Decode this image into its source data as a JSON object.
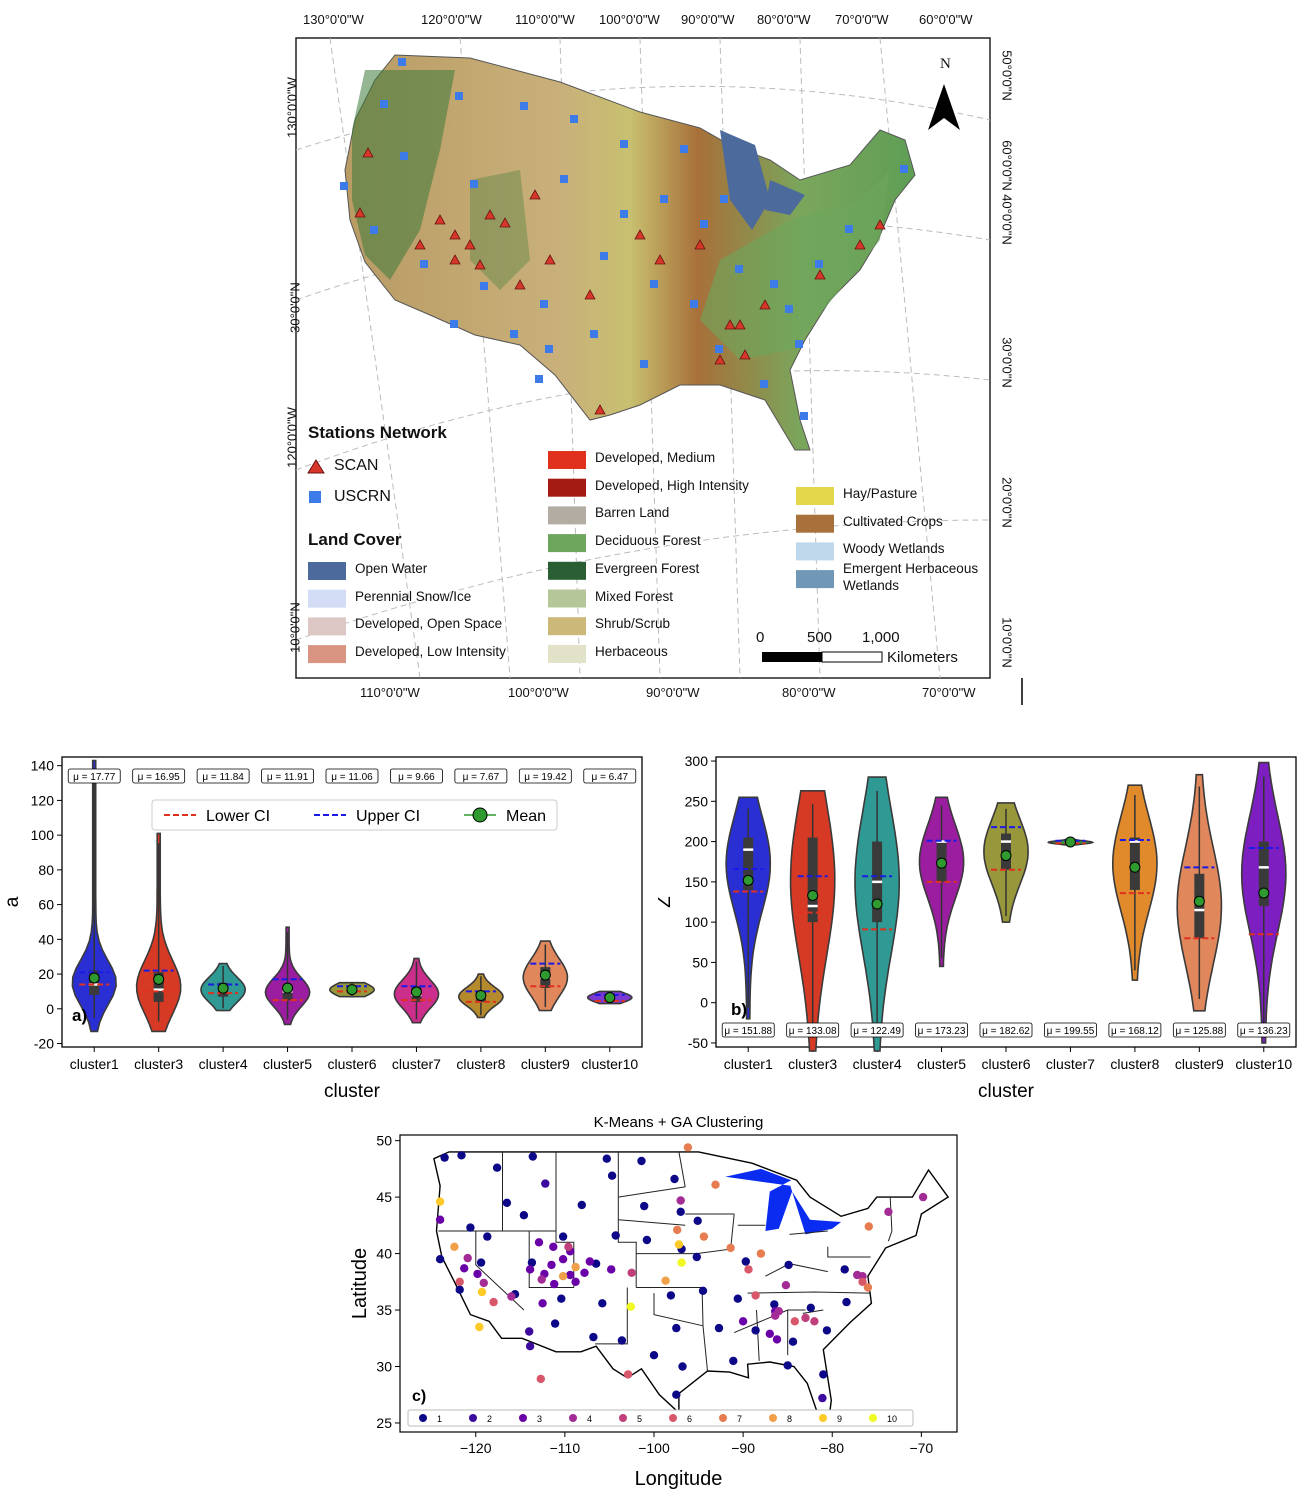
{
  "map_panel": {
    "top_lon_ticks": [
      "130°0'0\"W",
      "120°0'0\"W",
      "110°0'0\"W",
      "100°0'0\"W",
      "90°0'0\"W",
      "80°0'0\"W",
      "70°0'0\"W",
      "60°0'0\"W"
    ],
    "bottom_lon_ticks": [
      "110°0'0\"W",
      "100°0'0\"W",
      "90°0'0\"W",
      "80°0'0\"W",
      "70°0'0\"W"
    ],
    "left_lat_ticks": [
      "130°0'0\"W",
      "30°0'0\"N",
      "120°0'0\"W",
      "10°0'0\"N"
    ],
    "right_lat_ticks": [
      "50°0'0\"N",
      "60°0'0\"N",
      "40°0'0\"N",
      "30°0'0\"N",
      "20°0'0\"N",
      "10°0'0\"N"
    ],
    "north_label": "N",
    "stations_title": "Stations Network",
    "scan_label": "SCAN",
    "uscrn_label": "USCRN",
    "scan_color": "#d7372b",
    "uscrn_color": "#3d7be8",
    "landcover_title": "Land Cover",
    "landcover": [
      {
        "label": "Open Water",
        "color": "#4c6a9c"
      },
      {
        "label": "Perennial Snow/Ice",
        "color": "#d2ddf5"
      },
      {
        "label": "Developed, Open Space",
        "color": "#ddc7c5"
      },
      {
        "label": "Developed, Low Intensity",
        "color": "#d99482"
      },
      {
        "label": "Developed, Medium",
        "color": "#e0301e"
      },
      {
        "label": "Developed, High Intensity",
        "color": "#a31b12"
      },
      {
        "label": "Barren Land",
        "color": "#b3aca3"
      },
      {
        "label": "Deciduous Forest",
        "color": "#6ca65c"
      },
      {
        "label": "Evergreen Forest",
        "color": "#2a5e33"
      },
      {
        "label": "Mixed Forest",
        "color": "#b5c799"
      },
      {
        "label": "Shrub/Scrub",
        "color": "#ccb879"
      },
      {
        "label": "Herbaceous",
        "color": "#e2e2c8"
      },
      {
        "label": "Hay/Pasture",
        "color": "#e3d84c"
      },
      {
        "label": "Cultivated Crops",
        "color": "#a8703a"
      },
      {
        "label": "Woody Wetlands",
        "color": "#bfd7eb"
      },
      {
        "label": "Emergent Herbaceous Wetlands",
        "color": "#7097b5"
      }
    ],
    "scale_ticks": [
      "0",
      "500",
      "1,000"
    ],
    "scale_unit": "Kilometers"
  },
  "chart_data": [
    {
      "type": "violin",
      "panel_label": "a)",
      "xlabel": "cluster",
      "ylabel": "a",
      "ylim": [
        -22,
        145
      ],
      "yticks": [
        -20,
        0,
        20,
        40,
        60,
        80,
        100,
        120,
        140
      ],
      "categories": [
        "cluster1",
        "cluster3",
        "cluster4",
        "cluster5",
        "cluster6",
        "cluster7",
        "cluster8",
        "cluster9",
        "cluster10"
      ],
      "colors": [
        "#2a2fd4",
        "#d63a24",
        "#2e9a93",
        "#9b1da0",
        "#98973b",
        "#cc2e8c",
        "#b58a2c",
        "#e0875c",
        "#7d3ad0"
      ],
      "mean": [
        17.77,
        16.95,
        11.84,
        11.91,
        11.06,
        9.66,
        7.67,
        19.42,
        6.47
      ],
      "mean_labels": [
        "μ = 17.77",
        "μ = 16.95",
        "μ = 11.84",
        "μ = 11.91",
        "μ = 11.06",
        "μ = 9.66",
        "μ = 7.67",
        "μ = 19.42",
        "μ = 6.47"
      ],
      "lower_ci": [
        14,
        10,
        9,
        5,
        10,
        5,
        4,
        13,
        4.5
      ],
      "upper_ci": [
        21,
        22,
        14,
        17,
        13,
        13,
        10,
        26,
        8
      ],
      "median": [
        14,
        11,
        11,
        10,
        11,
        8,
        7,
        18,
        6
      ],
      "q1": [
        8,
        4,
        7,
        5,
        9,
        4,
        4,
        12,
        5
      ],
      "q3": [
        22,
        21,
        15,
        14,
        13,
        13,
        10,
        24,
        8
      ],
      "vmin": [
        -13,
        -13,
        -1,
        -9,
        7,
        -8,
        -5,
        -1,
        3
      ],
      "vmax": [
        143,
        101,
        26,
        47,
        15,
        29,
        20,
        39,
        10
      ],
      "legend": [
        "Lower CI",
        "Upper CI",
        "Mean"
      ]
    },
    {
      "type": "violin",
      "panel_label": "b)",
      "xlabel": "cluster",
      "ylabel": "Z",
      "ylim": [
        -55,
        305
      ],
      "yticks": [
        -50,
        0,
        50,
        100,
        150,
        200,
        250,
        300
      ],
      "categories": [
        "cluster1",
        "cluster3",
        "cluster4",
        "cluster5",
        "cluster6",
        "cluster7",
        "cluster8",
        "cluster9",
        "cluster10"
      ],
      "colors": [
        "#2a2fd4",
        "#d63a24",
        "#2e9a93",
        "#9b1da0",
        "#98973b",
        "#2e9a3a",
        "#e08a2c",
        "#e0875c",
        "#7d1fc0"
      ],
      "mean": [
        151.88,
        133.08,
        122.49,
        173.23,
        182.62,
        199.55,
        168.12,
        125.88,
        136.23
      ],
      "mean_labels": [
        "μ = 151.88",
        "μ = 133.08",
        "μ = 122.49",
        "μ = 173.23",
        "μ = 182.62",
        "μ = 199.55",
        "μ = 168.12",
        "μ = 125.88",
        "μ = 136.23"
      ],
      "lower_ci": [
        138,
        112,
        91,
        150,
        165,
        198,
        136,
        80,
        85
      ],
      "upper_ci": [
        166,
        157,
        157,
        201,
        218,
        201,
        202,
        168,
        192
      ],
      "median": [
        190,
        120,
        150,
        200,
        200,
        199,
        200,
        115,
        168
      ],
      "q1": [
        140,
        100,
        100,
        150,
        165,
        198,
        140,
        80,
        120
      ],
      "q3": [
        205,
        205,
        200,
        200,
        210,
        200,
        205,
        160,
        200
      ],
      "vmin": [
        -20,
        -60,
        -60,
        45,
        100,
        196,
        28,
        -10,
        -50
      ],
      "vmax": [
        255,
        263,
        280,
        255,
        248,
        203,
        270,
        283,
        298
      ],
      "legend": []
    },
    {
      "type": "scatter",
      "title": "K-Means + GA Clustering",
      "panel_label": "c)",
      "xlabel": "Longitude",
      "ylabel": "Latitude",
      "xlim": [
        -128.5,
        -66
      ],
      "ylim": [
        24.2,
        50.5
      ],
      "xticks": [
        -120,
        -110,
        -100,
        -90,
        -80,
        -70
      ],
      "yticks": [
        25,
        30,
        35,
        40,
        45,
        50
      ],
      "legend": [
        "1",
        "2",
        "3",
        "4",
        "5",
        "6",
        "7",
        "8",
        "9",
        "10"
      ],
      "cluster_colors": [
        "#0d0887",
        "#3c0a9c",
        "#6a00a8",
        "#a22b96",
        "#c0407b",
        "#d8576b",
        "#e67c50",
        "#f0a048",
        "#fdca27",
        "#f0f921"
      ],
      "points": [
        {
          "x": -123.5,
          "y": 48.5,
          "c": 1
        },
        {
          "x": -121.6,
          "y": 48.7,
          "c": 1
        },
        {
          "x": -117.6,
          "y": 47.6,
          "c": 1
        },
        {
          "x": -113.6,
          "y": 48.6,
          "c": 1
        },
        {
          "x": -105.3,
          "y": 48.4,
          "c": 1
        },
        {
          "x": -101.4,
          "y": 48.2,
          "c": 1
        },
        {
          "x": -97.7,
          "y": 46.6,
          "c": 1
        },
        {
          "x": -112.2,
          "y": 46.2,
          "c": 2
        },
        {
          "x": -104.7,
          "y": 46.9,
          "c": 1
        },
        {
          "x": -116.5,
          "y": 44.5,
          "c": 1
        },
        {
          "x": -114.6,
          "y": 43.4,
          "c": 1
        },
        {
          "x": -108.1,
          "y": 44.3,
          "c": 1
        },
        {
          "x": -101.1,
          "y": 44.2,
          "c": 1
        },
        {
          "x": -97.0,
          "y": 43.7,
          "c": 1
        },
        {
          "x": -95.1,
          "y": 42.9,
          "c": 1
        },
        {
          "x": -120.6,
          "y": 42.3,
          "c": 1
        },
        {
          "x": -118.7,
          "y": 41.5,
          "c": 1
        },
        {
          "x": -110.2,
          "y": 41.5,
          "c": 1
        },
        {
          "x": -104.3,
          "y": 41.6,
          "c": 1
        },
        {
          "x": -100.8,
          "y": 41.2,
          "c": 1
        },
        {
          "x": -96.9,
          "y": 40.4,
          "c": 1
        },
        {
          "x": -124.0,
          "y": 39.5,
          "c": 1
        },
        {
          "x": -119.4,
          "y": 39.2,
          "c": 1
        },
        {
          "x": -113.7,
          "y": 39.2,
          "c": 1
        },
        {
          "x": -106.5,
          "y": 39.1,
          "c": 1
        },
        {
          "x": -95.2,
          "y": 39.7,
          "c": 1
        },
        {
          "x": -89.7,
          "y": 39.3,
          "c": 1
        },
        {
          "x": -84.9,
          "y": 39.0,
          "c": 1
        },
        {
          "x": -78.6,
          "y": 38.6,
          "c": 1
        },
        {
          "x": -121.8,
          "y": 36.8,
          "c": 1
        },
        {
          "x": -115.6,
          "y": 36.4,
          "c": 1
        },
        {
          "x": -110.4,
          "y": 36.0,
          "c": 1
        },
        {
          "x": -105.8,
          "y": 35.6,
          "c": 1
        },
        {
          "x": -98.1,
          "y": 36.3,
          "c": 1
        },
        {
          "x": -94.5,
          "y": 36.7,
          "c": 1
        },
        {
          "x": -90.6,
          "y": 36.0,
          "c": 1
        },
        {
          "x": -86.5,
          "y": 35.5,
          "c": 1
        },
        {
          "x": -82.4,
          "y": 35.2,
          "c": 1
        },
        {
          "x": -78.4,
          "y": 35.7,
          "c": 1
        },
        {
          "x": -111.1,
          "y": 33.8,
          "c": 1
        },
        {
          "x": -106.8,
          "y": 32.6,
          "c": 1
        },
        {
          "x": -103.6,
          "y": 32.3,
          "c": 1
        },
        {
          "x": -97.5,
          "y": 33.4,
          "c": 1
        },
        {
          "x": -92.7,
          "y": 33.4,
          "c": 1
        },
        {
          "x": -88.6,
          "y": 33.2,
          "c": 1
        },
        {
          "x": -84.4,
          "y": 32.2,
          "c": 1
        },
        {
          "x": -80.6,
          "y": 33.2,
          "c": 1
        },
        {
          "x": -100.0,
          "y": 31.0,
          "c": 1
        },
        {
          "x": -96.8,
          "y": 30.0,
          "c": 1
        },
        {
          "x": -91.1,
          "y": 30.5,
          "c": 1
        },
        {
          "x": -85.0,
          "y": 30.1,
          "c": 1
        },
        {
          "x": -81.0,
          "y": 29.3,
          "c": 1
        },
        {
          "x": -97.5,
          "y": 27.5,
          "c": 1
        },
        {
          "x": -81.1,
          "y": 27.2,
          "c": 2
        },
        {
          "x": -114.0,
          "y": 33.1,
          "c": 2
        },
        {
          "x": -113.9,
          "y": 31.8,
          "c": 2
        },
        {
          "x": -124.0,
          "y": 43.0,
          "c": 3
        },
        {
          "x": -112.9,
          "y": 41.0,
          "c": 3
        },
        {
          "x": -111.3,
          "y": 40.6,
          "c": 3
        },
        {
          "x": -110.2,
          "y": 39.5,
          "c": 3
        },
        {
          "x": -112.3,
          "y": 38.2,
          "c": 3
        },
        {
          "x": -113.9,
          "y": 38.6,
          "c": 3
        },
        {
          "x": -119.8,
          "y": 38.2,
          "c": 3
        },
        {
          "x": -111.2,
          "y": 37.3,
          "c": 3
        },
        {
          "x": -112.5,
          "y": 35.6,
          "c": 3
        },
        {
          "x": -120.9,
          "y": 39.6,
          "c": 4
        },
        {
          "x": -121.3,
          "y": 38.7,
          "c": 3
        },
        {
          "x": -111.5,
          "y": 39.0,
          "c": 3
        },
        {
          "x": -109.4,
          "y": 38.1,
          "c": 3
        },
        {
          "x": -107.8,
          "y": 38.3,
          "c": 3
        },
        {
          "x": -109.4,
          "y": 40.2,
          "c": 3
        },
        {
          "x": -107.2,
          "y": 39.3,
          "c": 3
        },
        {
          "x": -104.8,
          "y": 38.6,
          "c": 3
        },
        {
          "x": -108.8,
          "y": 37.5,
          "c": 3
        },
        {
          "x": -112.6,
          "y": 37.7,
          "c": 4
        },
        {
          "x": -119.1,
          "y": 37.4,
          "c": 4
        },
        {
          "x": -116.0,
          "y": 36.2,
          "c": 4
        },
        {
          "x": -90.0,
          "y": 34.0,
          "c": 3
        },
        {
          "x": -86.4,
          "y": 34.9,
          "c": 3
        },
        {
          "x": -86.2,
          "y": 32.4,
          "c": 3
        },
        {
          "x": -87.0,
          "y": 32.9,
          "c": 3
        },
        {
          "x": -86.4,
          "y": 34.5,
          "c": 4
        },
        {
          "x": -86.0,
          "y": 34.9,
          "c": 4
        },
        {
          "x": -77.2,
          "y": 38.1,
          "c": 4
        },
        {
          "x": -76.6,
          "y": 38.0,
          "c": 4
        },
        {
          "x": -85.2,
          "y": 37.2,
          "c": 4
        },
        {
          "x": -97.0,
          "y": 44.7,
          "c": 4
        },
        {
          "x": -109.6,
          "y": 40.6,
          "c": 5
        },
        {
          "x": -102.5,
          "y": 38.3,
          "c": 5
        },
        {
          "x": -82.0,
          "y": 34.0,
          "c": 5
        },
        {
          "x": -83.0,
          "y": 34.3,
          "c": 5
        },
        {
          "x": -69.8,
          "y": 45.0,
          "c": 4
        },
        {
          "x": -73.7,
          "y": 43.7,
          "c": 4
        },
        {
          "x": -121.8,
          "y": 37.5,
          "c": 6
        },
        {
          "x": -89.4,
          "y": 38.6,
          "c": 6
        },
        {
          "x": -88.6,
          "y": 36.3,
          "c": 6
        },
        {
          "x": -118.0,
          "y": 35.7,
          "c": 6
        },
        {
          "x": -112.7,
          "y": 28.9,
          "c": 6
        },
        {
          "x": -102.9,
          "y": 29.3,
          "c": 6
        },
        {
          "x": -84.2,
          "y": 34.0,
          "c": 6
        },
        {
          "x": -76.6,
          "y": 37.5,
          "c": 6
        },
        {
          "x": -96.2,
          "y": 49.4,
          "c": 7
        },
        {
          "x": -93.1,
          "y": 46.1,
          "c": 7
        },
        {
          "x": -97.4,
          "y": 42.1,
          "c": 7
        },
        {
          "x": -94.4,
          "y": 41.5,
          "c": 7
        },
        {
          "x": -91.4,
          "y": 40.5,
          "c": 7
        },
        {
          "x": -88.0,
          "y": 40.0,
          "c": 7
        },
        {
          "x": -75.9,
          "y": 42.4,
          "c": 7
        },
        {
          "x": -76.0,
          "y": 37.0,
          "c": 7
        },
        {
          "x": -108.8,
          "y": 38.8,
          "c": 8
        },
        {
          "x": -110.2,
          "y": 38.0,
          "c": 8
        },
        {
          "x": -122.4,
          "y": 40.6,
          "c": 8
        },
        {
          "x": -98.7,
          "y": 37.6,
          "c": 8
        },
        {
          "x": -124.0,
          "y": 44.6,
          "c": 9
        },
        {
          "x": -119.3,
          "y": 36.6,
          "c": 9
        },
        {
          "x": -97.2,
          "y": 40.8,
          "c": 9
        },
        {
          "x": -96.9,
          "y": 39.2,
          "c": 10
        },
        {
          "x": -102.6,
          "y": 35.3,
          "c": 10
        },
        {
          "x": -119.6,
          "y": 33.5,
          "c": 9
        }
      ]
    }
  ]
}
